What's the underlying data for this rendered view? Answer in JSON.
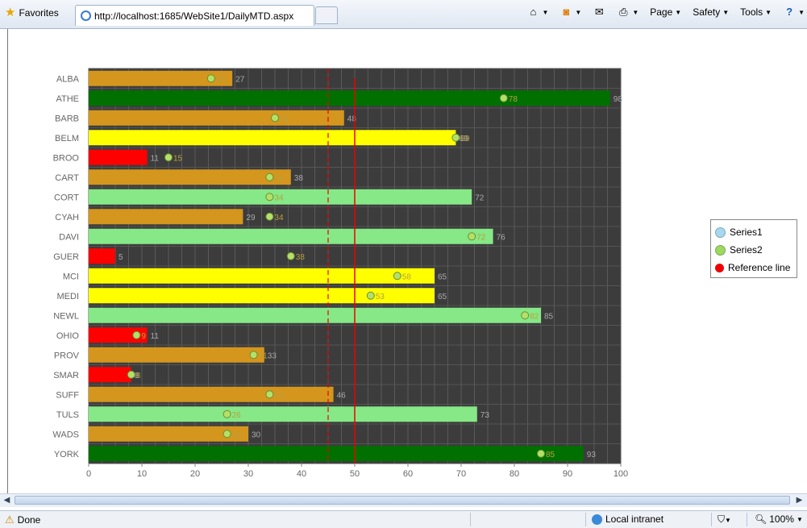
{
  "browser": {
    "favorites_label": "Favorites",
    "tab_url": "http://localhost:1685/WebSite1/DailyMTD.aspx",
    "page_menu": "Page",
    "safety_menu": "Safety",
    "tools_menu": "Tools"
  },
  "status": {
    "done": "Done",
    "zone": "Local intranet",
    "zoom": "100%"
  },
  "colors": {
    "red": "#ff0000",
    "orange": "#d4961c",
    "yellow": "#ffff00",
    "lightgreen": "#86e886",
    "darkgreen": "#007000",
    "plot_bg": "#3c3c3c"
  },
  "chart_data": {
    "type": "bar",
    "orientation": "horizontal",
    "xlim": [
      0,
      100
    ],
    "ticks": [
      0,
      10,
      20,
      30,
      40,
      50,
      60,
      70,
      80,
      90,
      100
    ],
    "reference_line": 50,
    "dashed_line": 45,
    "categories": [
      "ALBA",
      "ATHE",
      "BARB",
      "BELM",
      "BROO",
      "CART",
      "CORT",
      "CYAH",
      "DAVI",
      "GUER",
      "MCI",
      "MEDI",
      "NEWL",
      "OHIO",
      "PROV",
      "SMAR",
      "SUFF",
      "TULS",
      "WADS",
      "YORK"
    ],
    "series": [
      {
        "name": "Series1",
        "values": [
          27,
          98,
          48,
          69,
          11,
          38,
          72,
          29,
          76,
          5,
          65,
          65,
          85,
          11,
          33,
          8,
          46,
          73,
          30,
          93
        ]
      },
      {
        "name": "Series2",
        "values": [
          23,
          78,
          35,
          69,
          15,
          34,
          34,
          34,
          72,
          38,
          58,
          53,
          82,
          9,
          31,
          8,
          34,
          26,
          26,
          85
        ]
      }
    ],
    "bar_colors": [
      "orange",
      "darkgreen",
      "orange",
      "yellow",
      "red",
      "orange",
      "lightgreen",
      "orange",
      "lightgreen",
      "red",
      "yellow",
      "yellow",
      "lightgreen",
      "red",
      "orange",
      "red",
      "orange",
      "lightgreen",
      "orange",
      "darkgreen"
    ],
    "legend": [
      {
        "label": "Series1",
        "color": "#a8d8f0"
      },
      {
        "label": "Series2",
        "color": "#9ed860"
      },
      {
        "label": "Reference line",
        "color": "#ee0000"
      }
    ],
    "legend_position": "right"
  }
}
